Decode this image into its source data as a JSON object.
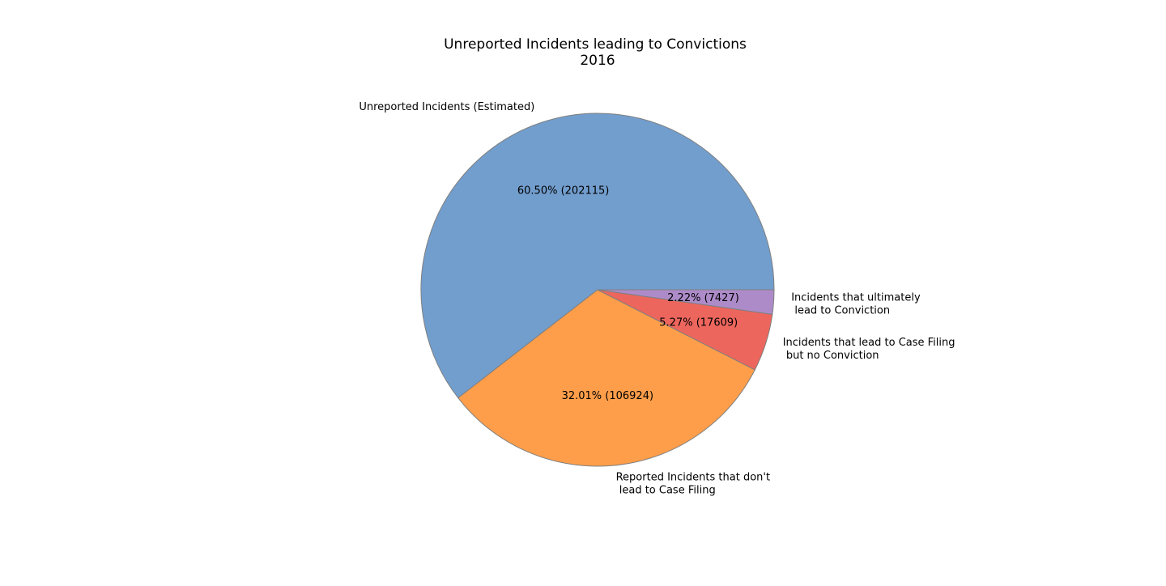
{
  "chart_data": {
    "type": "pie",
    "title": "Unreported Incidents leading to Convictions",
    "subtitle": "2016",
    "legend": "none",
    "slices": [
      {
        "label_lines": [
          "Unreported Incidents (Estimated)"
        ],
        "value": 202115,
        "percent_text": "60.50%  (202115)",
        "color": "#729ECE"
      },
      {
        "label_lines": [
          "Reported Incidents that don't",
          " lead to Case Filing"
        ],
        "value": 106924,
        "percent_text": "32.01%  (106924)",
        "color": "#FF9E4A"
      },
      {
        "label_lines": [
          "Incidents that lead to Case Filing",
          " but no Conviction"
        ],
        "value": 17609,
        "percent_text": "5.27%  (17609)",
        "color": "#ED665D"
      },
      {
        "label_lines": [
          "Incidents that ultimately",
          " lead to Conviction"
        ],
        "value": 7427,
        "percent_text": "2.22%  (7427)",
        "color": "#AD8BC9"
      }
    ],
    "edge_color": "#7f7f7f"
  }
}
